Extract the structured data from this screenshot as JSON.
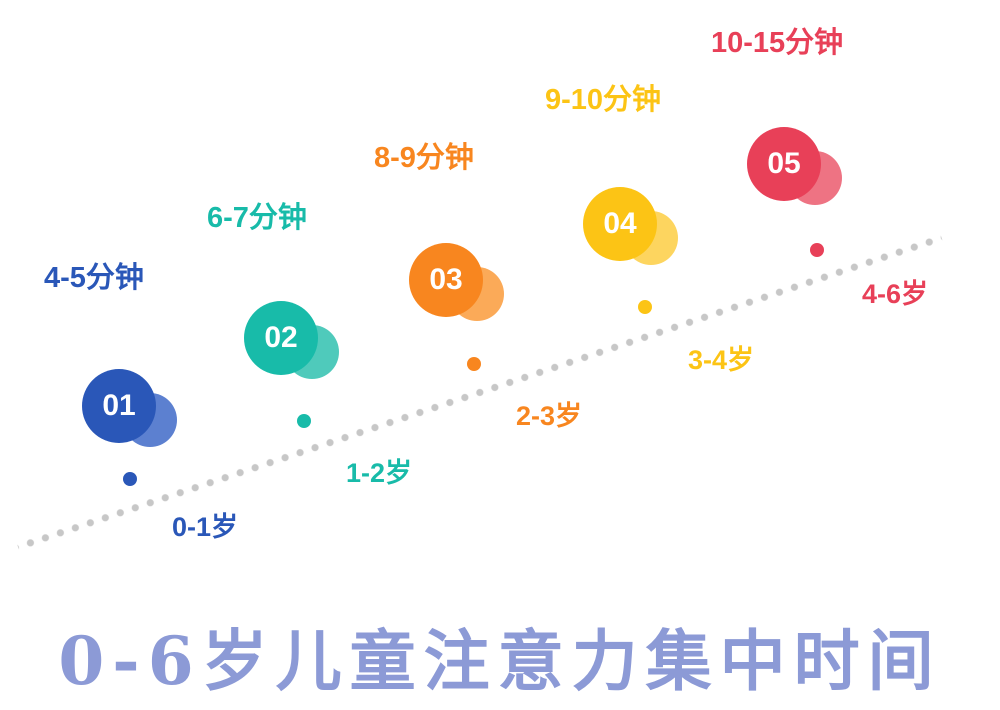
{
  "title": {
    "text": "0-6岁儿童注意力集中时间",
    "color": "#8c9ad6"
  },
  "trend_line_color": "#c7c7c7",
  "groups": [
    {
      "number": "01",
      "duration": "4-5分钟",
      "age": "0-1岁",
      "color": "#2a57b8",
      "light_color": "#5c80d0"
    },
    {
      "number": "02",
      "duration": "6-7分钟",
      "age": "1-2岁",
      "color": "#18bba9",
      "light_color": "#4fcabb"
    },
    {
      "number": "03",
      "duration": "8-9分钟",
      "age": "2-3岁",
      "color": "#f8861f",
      "light_color": "#fbaa58"
    },
    {
      "number": "04",
      "duration": "9-10分钟",
      "age": "3-4岁",
      "color": "#fcc415",
      "light_color": "#fdd55f"
    },
    {
      "number": "05",
      "duration": "10-15分钟",
      "age": "4-6岁",
      "color": "#e84058",
      "light_color": "#ee7383"
    }
  ],
  "chart_data": {
    "type": "scatter",
    "title": "0-6岁儿童注意力集中时间",
    "categories": [
      "0-1岁",
      "1-2岁",
      "2-3岁",
      "3-4岁",
      "4-6岁"
    ],
    "series": [
      {
        "name": "注意力集中时间",
        "labels": [
          "4-5分钟",
          "6-7分钟",
          "8-9分钟",
          "9-10分钟",
          "10-15分钟"
        ],
        "min_minutes": [
          4,
          6,
          8,
          9,
          10
        ],
        "max_minutes": [
          5,
          7,
          9,
          10,
          15
        ]
      }
    ],
    "point_numbers": [
      "01",
      "02",
      "03",
      "04",
      "05"
    ],
    "point_colors": [
      "#2a57b8",
      "#18bba9",
      "#f8861f",
      "#fcc415",
      "#e84058"
    ],
    "trend": "increasing",
    "trend_line_style": "dotted",
    "grid": false,
    "legend_position": "none"
  }
}
